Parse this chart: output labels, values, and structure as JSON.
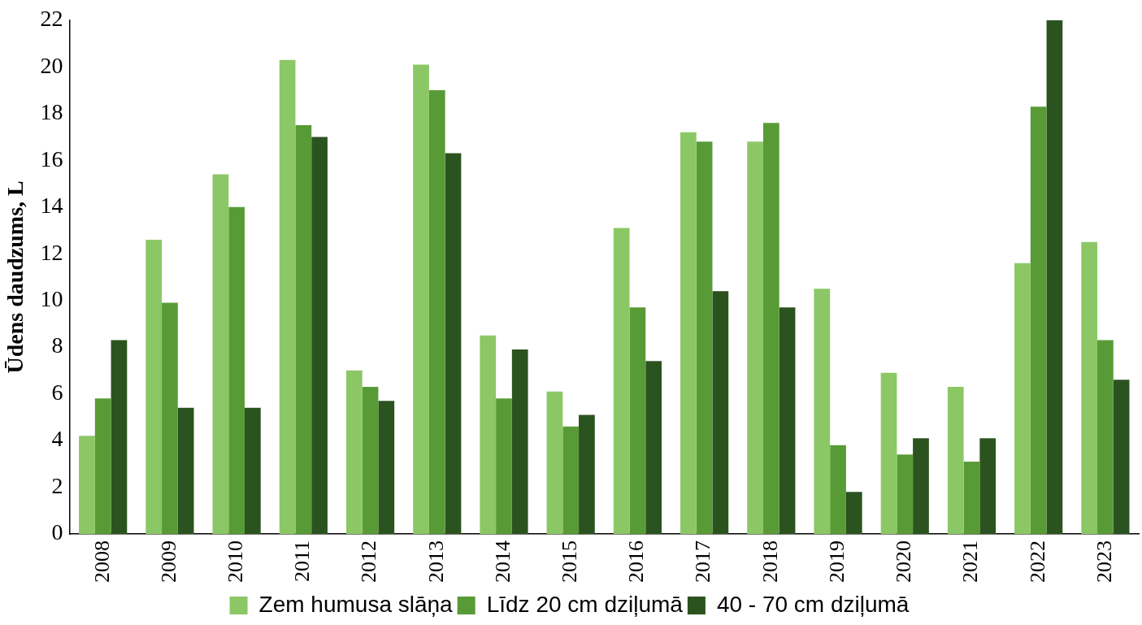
{
  "chart_data": {
    "type": "bar",
    "ylabel": "Ūdens daudzums, L",
    "categories": [
      "2008",
      "2009",
      "2010",
      "2011",
      "2012",
      "2013",
      "2014",
      "2015",
      "2016",
      "2017",
      "2018",
      "2019",
      "2020",
      "2021",
      "2022",
      "2023"
    ],
    "series": [
      {
        "name": "Zem humusa slāņa",
        "color": "#8cc766",
        "values": [
          4.2,
          12.6,
          15.4,
          20.3,
          7.0,
          20.1,
          8.5,
          6.1,
          13.1,
          17.2,
          16.8,
          10.5,
          6.9,
          6.3,
          11.6,
          12.5
        ]
      },
      {
        "name": "Līdz 20 cm dziļumā",
        "color": "#589b36",
        "values": [
          5.8,
          9.9,
          14.0,
          17.5,
          6.3,
          19.0,
          5.8,
          4.6,
          9.7,
          16.8,
          17.6,
          3.8,
          3.4,
          3.1,
          18.3,
          8.3
        ]
      },
      {
        "name": "40 - 70 cm dziļumā",
        "color": "#2b531f",
        "values": [
          8.3,
          5.4,
          5.4,
          17.0,
          5.7,
          16.3,
          7.9,
          5.1,
          7.4,
          10.4,
          9.7,
          1.8,
          4.1,
          4.1,
          22.0,
          6.6
        ]
      }
    ],
    "ylim": [
      0,
      22
    ],
    "yticks": [
      0,
      2,
      4,
      6,
      8,
      10,
      12,
      14,
      16,
      18,
      20,
      22
    ],
    "grid": false,
    "legend": "bottom"
  }
}
